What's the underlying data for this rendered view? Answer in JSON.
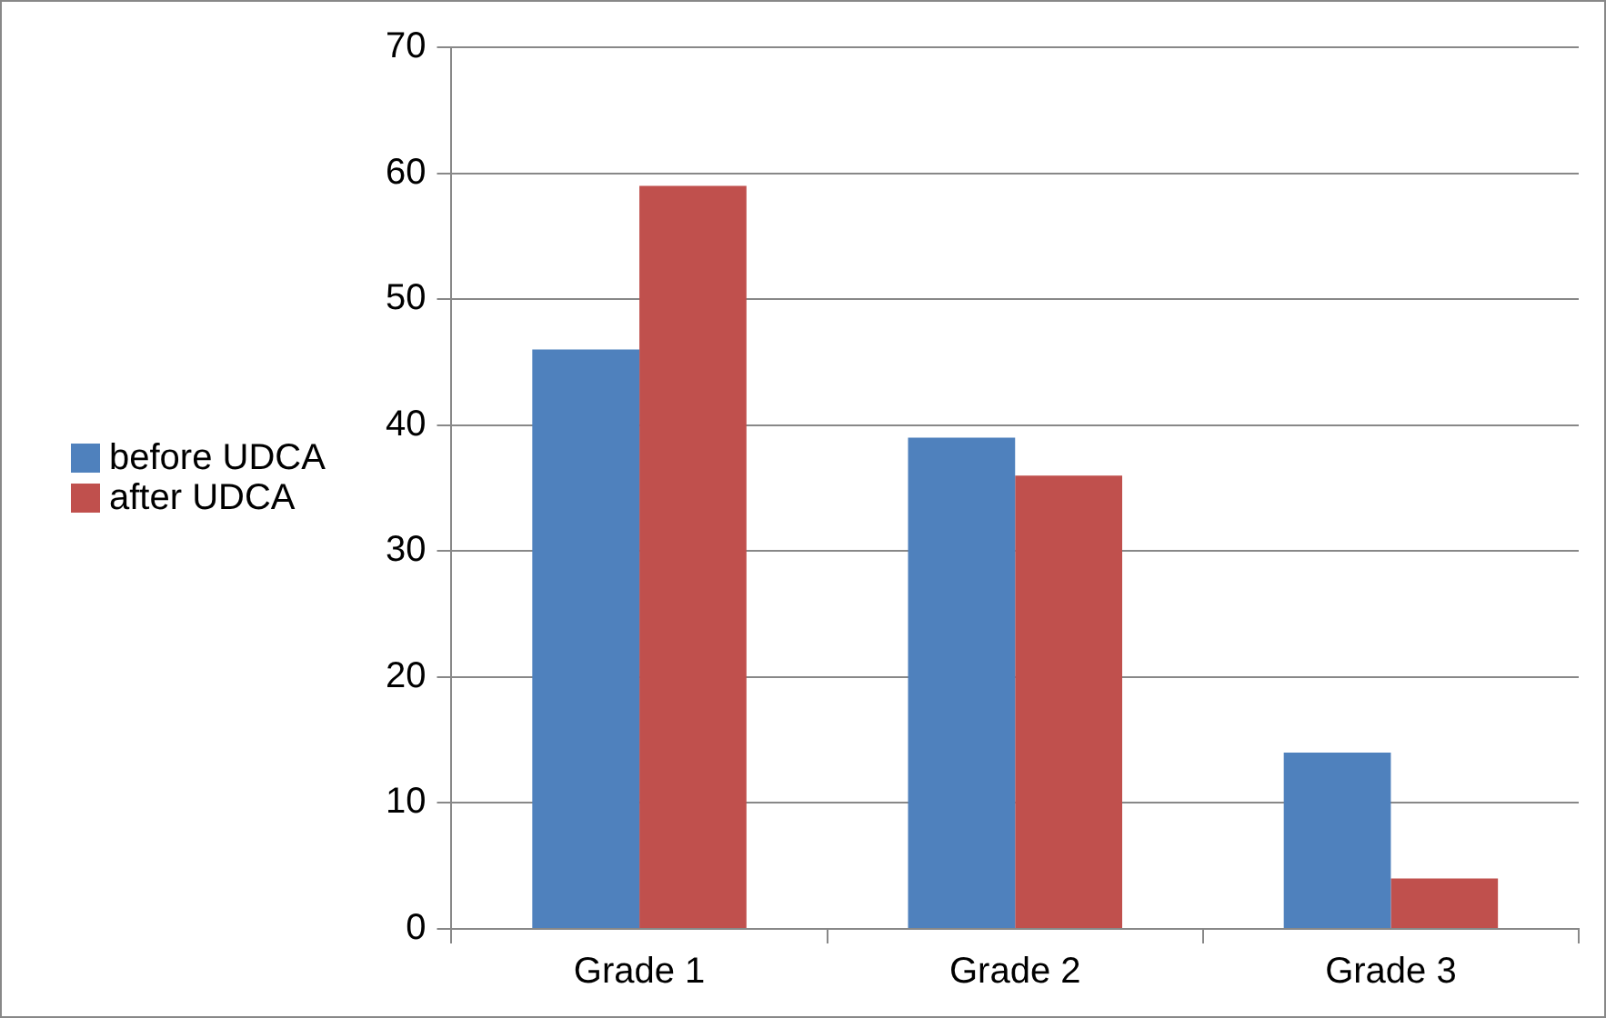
{
  "chart_data": {
    "type": "bar",
    "categories": [
      "Grade 1",
      "Grade 2",
      "Grade 3"
    ],
    "series": [
      {
        "name": "before UDCA",
        "color": "#4f81bd",
        "values": [
          46,
          39,
          14
        ]
      },
      {
        "name": "after UDCA",
        "color": "#c0504d",
        "values": [
          59,
          36,
          4
        ]
      }
    ],
    "ylim": [
      0,
      70
    ],
    "yticks": [
      0,
      10,
      20,
      30,
      40,
      50,
      60,
      70
    ],
    "grid": "y",
    "legend": "left"
  }
}
